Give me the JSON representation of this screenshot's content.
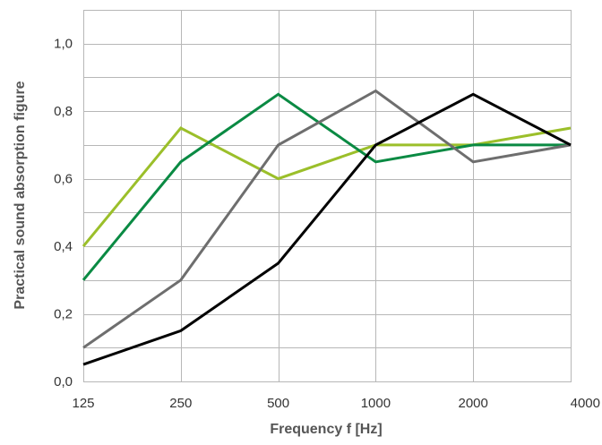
{
  "chart_data": {
    "type": "line",
    "title": "",
    "xlabel": "Frequency f [Hz]",
    "ylabel": "Practical sound absorption figure",
    "categories": [
      "125",
      "250",
      "500",
      "1000",
      "2000",
      "4000"
    ],
    "ylim": [
      0,
      1.1
    ],
    "y_ticks": [
      "0,0",
      "0,2",
      "0,4",
      "0,6",
      "0,8",
      "1,0"
    ],
    "y_tick_values": [
      0,
      0.2,
      0.4,
      0.6,
      0.8,
      1.0
    ],
    "grid": true,
    "y_grid_step": 0.1,
    "legend": "none",
    "series": [
      {
        "color": "#9bbf2a",
        "values": [
          0.4,
          0.75,
          0.6,
          0.7,
          0.7,
          0.75
        ]
      },
      {
        "color": "#0a8a43",
        "values": [
          0.3,
          0.65,
          0.85,
          0.65,
          0.7,
          0.7
        ]
      },
      {
        "color": "#6e6e6e",
        "values": [
          0.1,
          0.3,
          0.7,
          0.86,
          0.65,
          0.7
        ]
      },
      {
        "color": "#000000",
        "values": [
          0.05,
          0.15,
          0.35,
          0.7,
          0.85,
          0.7
        ]
      }
    ]
  }
}
